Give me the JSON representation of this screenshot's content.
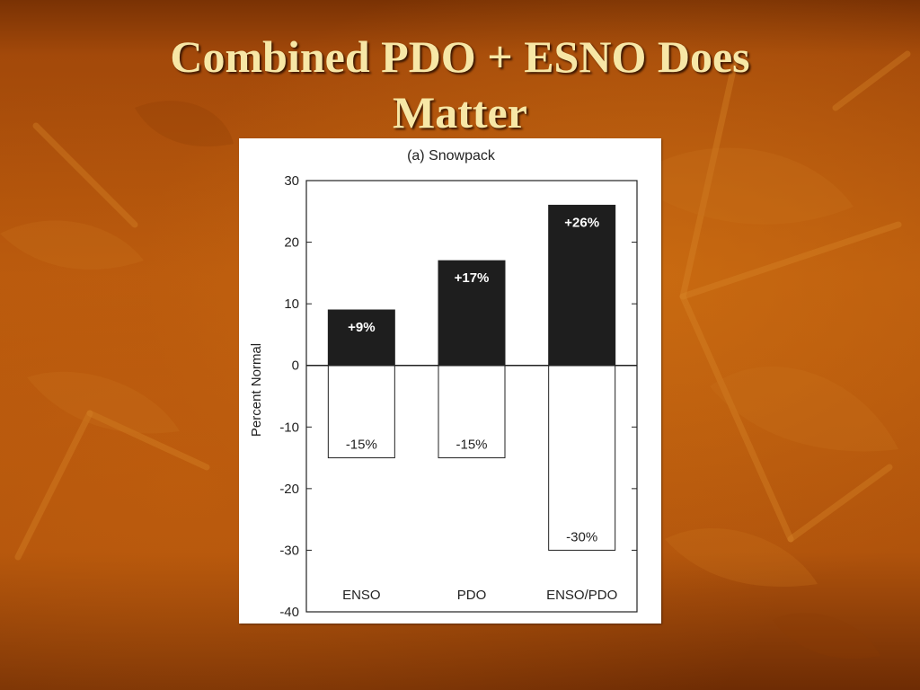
{
  "slide": {
    "title": "Combined PDO + ESNO Does Matter"
  },
  "chart_data": {
    "type": "bar",
    "title": "(a) Snowpack",
    "xlabel": "",
    "ylabel": "Percent Normal",
    "ylim": [
      -40,
      30
    ],
    "yticks": [
      30,
      20,
      10,
      0,
      -10,
      -20,
      -30,
      -40
    ],
    "grid": false,
    "categories": [
      "ENSO",
      "PDO",
      "ENSO/PDO"
    ],
    "series": [
      {
        "values": [
          9,
          17,
          26
        ],
        "labels": [
          "+9%",
          "+17%",
          "+26%"
        ],
        "fill": "#1e1e1e",
        "label_color": "#ffffff"
      },
      {
        "values": [
          -15,
          -15,
          -30
        ],
        "labels": [
          "-15%",
          "-15%",
          "-30%"
        ],
        "fill": "#ffffff",
        "label_color": "#222222"
      }
    ]
  },
  "colors": {
    "title_text": "#f7e7a6",
    "background": "#b85a0c"
  }
}
